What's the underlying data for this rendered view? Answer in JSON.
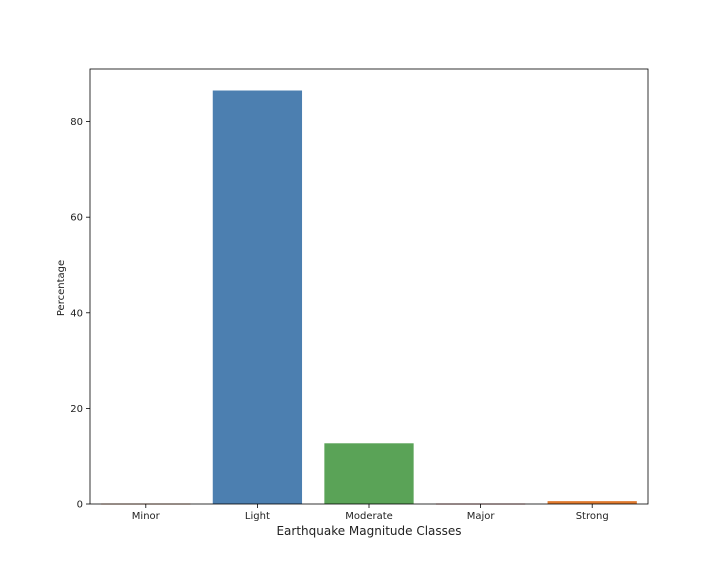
{
  "chart_data": {
    "type": "bar",
    "title": "",
    "xlabel": "Earthquake Magnitude Classes",
    "ylabel": "Percentage",
    "categories": [
      "Minor",
      "Light",
      "Moderate",
      "Major",
      "Strong"
    ],
    "values": [
      0.1,
      86.5,
      12.7,
      0.1,
      0.6
    ],
    "colors": [
      "#dd8452",
      "#4c7fb0",
      "#5aa357",
      "#c44e52",
      "#e07a2e"
    ],
    "ylim": [
      0,
      91
    ],
    "yticks": [
      0,
      20,
      40,
      60,
      80
    ],
    "grid": false,
    "legend": "none"
  }
}
